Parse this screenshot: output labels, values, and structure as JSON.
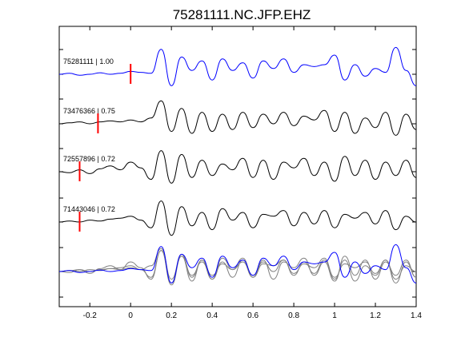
{
  "chart_data": {
    "type": "line",
    "title": "75281111.NC.JFP.EHZ",
    "xlabel": "",
    "ylabel": "",
    "xlim": [
      -0.35,
      1.4
    ],
    "xticks": [
      -0.2,
      0,
      0.2,
      0.4,
      0.6,
      0.8,
      1,
      1.2,
      1.4
    ],
    "xtick_labels": [
      "-0.2",
      "0",
      "0.2",
      "0.4",
      "0.6",
      "0.8",
      "1",
      "1.2",
      "1.4"
    ],
    "grid": false,
    "colors": {
      "reference": "#0000ff",
      "trace": "#000000",
      "overlay": "#808080",
      "pick": "#ff0000"
    },
    "series": [
      {
        "name": "75281111",
        "label": "75281111 | 1.00",
        "pick": 0.0,
        "color": "#0000ff",
        "x": [
          -0.35,
          -0.3,
          -0.25,
          -0.2,
          -0.15,
          -0.1,
          -0.05,
          0.0,
          0.05,
          0.1,
          0.15,
          0.2,
          0.25,
          0.3,
          0.35,
          0.4,
          0.45,
          0.5,
          0.55,
          0.6,
          0.65,
          0.7,
          0.75,
          0.8,
          0.85,
          0.9,
          0.95,
          1.0,
          1.05,
          1.1,
          1.15,
          1.2,
          1.25,
          1.3,
          1.35,
          1.4
        ],
        "y": [
          0.0,
          0.05,
          -0.05,
          0.0,
          0.08,
          0.0,
          0.05,
          0.15,
          0.1,
          0.05,
          1.3,
          -0.6,
          0.9,
          0.2,
          0.7,
          -0.3,
          0.8,
          0.2,
          0.6,
          -0.2,
          0.7,
          0.3,
          0.8,
          0.1,
          0.5,
          0.4,
          0.5,
          1.0,
          -0.3,
          0.5,
          -0.1,
          0.3,
          0.1,
          1.4,
          0.2,
          -0.6
        ]
      },
      {
        "name": "73476366",
        "label": "73476366 | 0.75",
        "pick": -0.16,
        "color": "#000000",
        "x": [
          -0.35,
          -0.3,
          -0.25,
          -0.2,
          -0.15,
          -0.1,
          -0.05,
          0.0,
          0.05,
          0.1,
          0.15,
          0.2,
          0.25,
          0.3,
          0.35,
          0.4,
          0.45,
          0.5,
          0.55,
          0.6,
          0.65,
          0.7,
          0.75,
          0.8,
          0.85,
          0.9,
          0.95,
          1.0,
          1.05,
          1.1,
          1.15,
          1.2,
          1.25,
          1.3,
          1.35,
          1.4
        ],
        "y": [
          0.0,
          0.05,
          0.1,
          0.0,
          0.1,
          0.15,
          0.1,
          0.2,
          0.1,
          0.3,
          1.2,
          -0.4,
          0.8,
          -0.5,
          0.6,
          -0.4,
          0.5,
          -0.3,
          0.6,
          -0.2,
          0.5,
          0.0,
          0.6,
          -0.1,
          0.4,
          0.2,
          0.7,
          -0.4,
          0.6,
          -0.5,
          0.3,
          -0.2,
          0.6,
          -0.6,
          0.5,
          -0.3
        ]
      },
      {
        "name": "72557896",
        "label": "72557896 | 0.72",
        "pick": -0.25,
        "color": "#000000",
        "x": [
          -0.35,
          -0.3,
          -0.25,
          -0.2,
          -0.15,
          -0.1,
          -0.05,
          0.0,
          0.05,
          0.1,
          0.15,
          0.2,
          0.25,
          0.3,
          0.35,
          0.4,
          0.45,
          0.5,
          0.55,
          0.6,
          0.65,
          0.7,
          0.75,
          0.8,
          0.85,
          0.9,
          0.95,
          1.0,
          1.05,
          1.1,
          1.15,
          1.2,
          1.25,
          1.3,
          1.35,
          1.4
        ],
        "y": [
          0.0,
          -0.05,
          0.1,
          -0.1,
          0.15,
          0.3,
          0.1,
          0.5,
          0.2,
          -0.4,
          1.1,
          -0.6,
          0.9,
          -0.3,
          0.6,
          -0.2,
          0.4,
          0.1,
          0.7,
          -0.3,
          0.6,
          -0.4,
          0.5,
          0.2,
          0.7,
          -0.2,
          0.5,
          -0.5,
          0.8,
          -0.2,
          0.6,
          -0.4,
          0.5,
          -0.2,
          0.6,
          -0.3
        ]
      },
      {
        "name": "71443046",
        "label": "71443046 | 0.72",
        "pick": -0.25,
        "color": "#000000",
        "x": [
          -0.35,
          -0.3,
          -0.25,
          -0.2,
          -0.15,
          -0.1,
          -0.05,
          0.0,
          0.05,
          0.1,
          0.15,
          0.2,
          0.25,
          0.3,
          0.35,
          0.4,
          0.45,
          0.5,
          0.55,
          0.6,
          0.65,
          0.7,
          0.75,
          0.8,
          0.85,
          0.9,
          0.95,
          1.0,
          1.05,
          1.1,
          1.15,
          1.2,
          1.25,
          1.3,
          1.35,
          1.4
        ],
        "y": [
          0.0,
          0.05,
          0.0,
          0.1,
          0.05,
          0.15,
          0.2,
          0.3,
          0.1,
          -0.3,
          1.1,
          -0.7,
          0.8,
          -0.2,
          0.5,
          -0.4,
          0.7,
          0.1,
          0.5,
          -0.3,
          0.4,
          0.3,
          0.6,
          -0.2,
          0.5,
          -0.1,
          0.6,
          -0.3,
          0.4,
          0.2,
          0.5,
          -0.1,
          0.6,
          -0.4,
          0.3,
          0.0
        ]
      }
    ]
  }
}
